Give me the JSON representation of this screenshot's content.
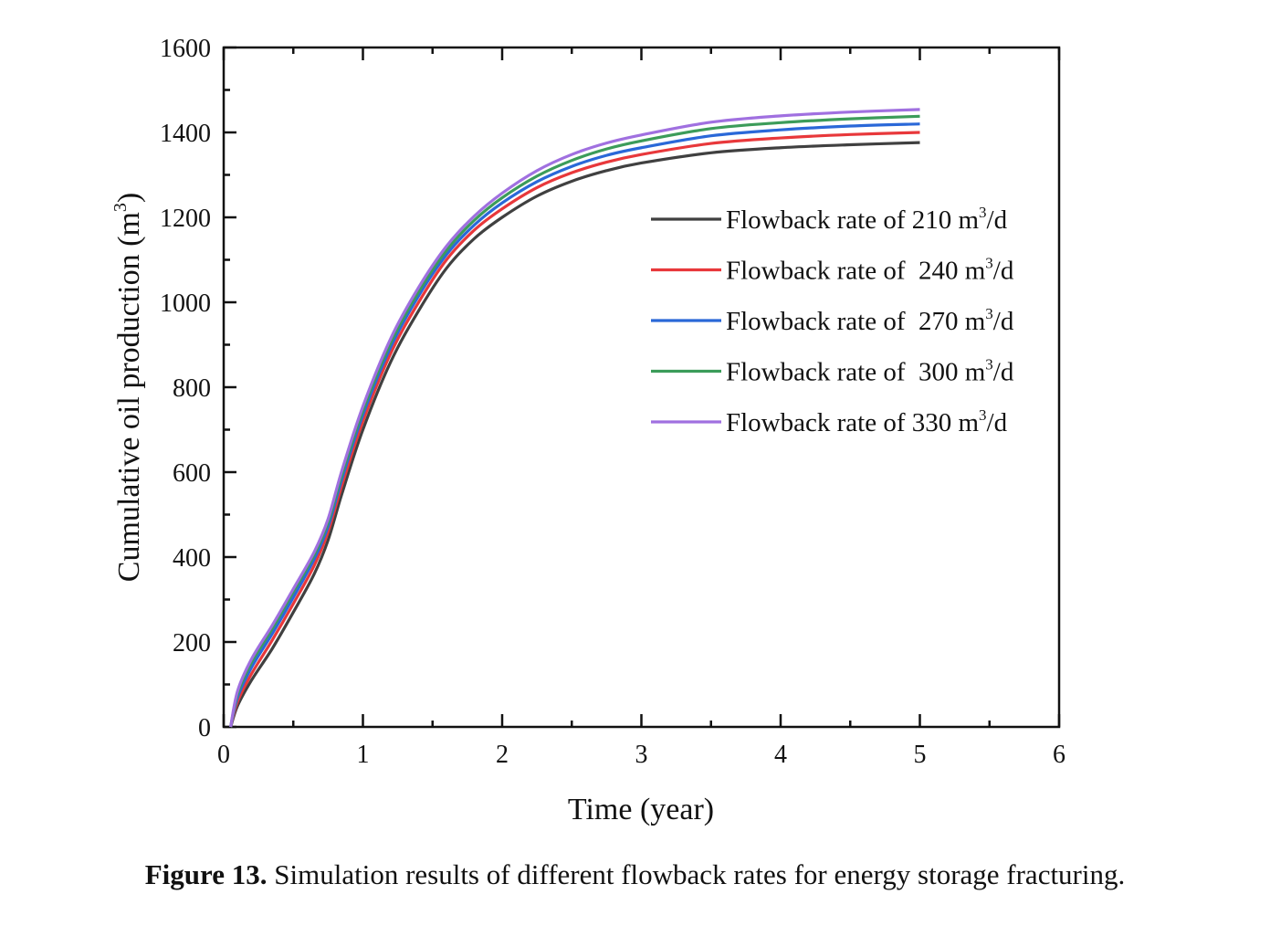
{
  "chart_data": {
    "type": "line",
    "title": "",
    "xlabel": "Time (year)",
    "ylabel": "Cumulative oil production (m",
    "ylabel_sup": "3",
    "ylabel_end": ")",
    "xlim": [
      0,
      6
    ],
    "ylim": [
      0,
      1600
    ],
    "x_ticks": [
      "0",
      "1",
      "2",
      "3",
      "4",
      "5",
      "6"
    ],
    "y_ticks": [
      "0",
      "200",
      "400",
      "600",
      "800",
      "1000",
      "1200",
      "1400",
      "1600"
    ],
    "x_tick_values": [
      0,
      1,
      2,
      3,
      4,
      5,
      6
    ],
    "y_tick_values": [
      0,
      200,
      400,
      600,
      800,
      1000,
      1200,
      1400,
      1600
    ],
    "grid": false,
    "legend_position": "right, upper-middle",
    "x": [
      0.05,
      0.1,
      0.2,
      0.35,
      0.5,
      0.65,
      0.75,
      0.85,
      1.0,
      1.2,
      1.4,
      1.6,
      1.8,
      2.0,
      2.25,
      2.5,
      2.75,
      3.0,
      3.5,
      4.0,
      4.5,
      5.0
    ],
    "series": [
      {
        "name": "Flowback rate of 210 m",
        "name_sup": "3",
        "name_end": "/d",
        "color": "#404040",
        "values": [
          0,
          50,
          110,
          185,
          270,
          360,
          440,
          550,
          700,
          860,
          980,
          1080,
          1150,
          1200,
          1250,
          1285,
          1310,
          1328,
          1352,
          1364,
          1371,
          1376
        ]
      },
      {
        "name": "Flowback rate of  240 m",
        "name_sup": "3",
        "name_end": "/d",
        "color": "#e8383b",
        "values": [
          0,
          60,
          125,
          205,
          290,
          380,
          460,
          570,
          720,
          880,
          1000,
          1100,
          1170,
          1220,
          1270,
          1305,
          1330,
          1348,
          1374,
          1387,
          1395,
          1400
        ]
      },
      {
        "name": "Flowback rate of  270 m",
        "name_sup": "3",
        "name_end": "/d",
        "color": "#2a68d8",
        "values": [
          0,
          70,
          140,
          220,
          305,
          395,
          472,
          585,
          735,
          895,
          1015,
          1112,
          1182,
          1234,
          1284,
          1320,
          1346,
          1364,
          1392,
          1406,
          1415,
          1420
        ]
      },
      {
        "name": "Flowback rate of  300 m",
        "name_sup": "3",
        "name_end": "/d",
        "color": "#3c9c5a",
        "values": [
          0,
          78,
          152,
          232,
          318,
          405,
          482,
          595,
          745,
          905,
          1025,
          1122,
          1193,
          1246,
          1297,
          1334,
          1361,
          1380,
          1409,
          1423,
          1432,
          1438
        ]
      },
      {
        "name": "Flowback rate of 330 m",
        "name_sup": "3",
        "name_end": "/d",
        "color": "#a070e0",
        "values": [
          0,
          85,
          160,
          240,
          325,
          412,
          490,
          605,
          755,
          915,
          1035,
          1132,
          1203,
          1257,
          1310,
          1348,
          1375,
          1394,
          1424,
          1439,
          1448,
          1454
        ]
      }
    ]
  },
  "caption": {
    "label": "Figure 13.",
    "text": " Simulation results of different flowback rates for energy storage fracturing."
  }
}
